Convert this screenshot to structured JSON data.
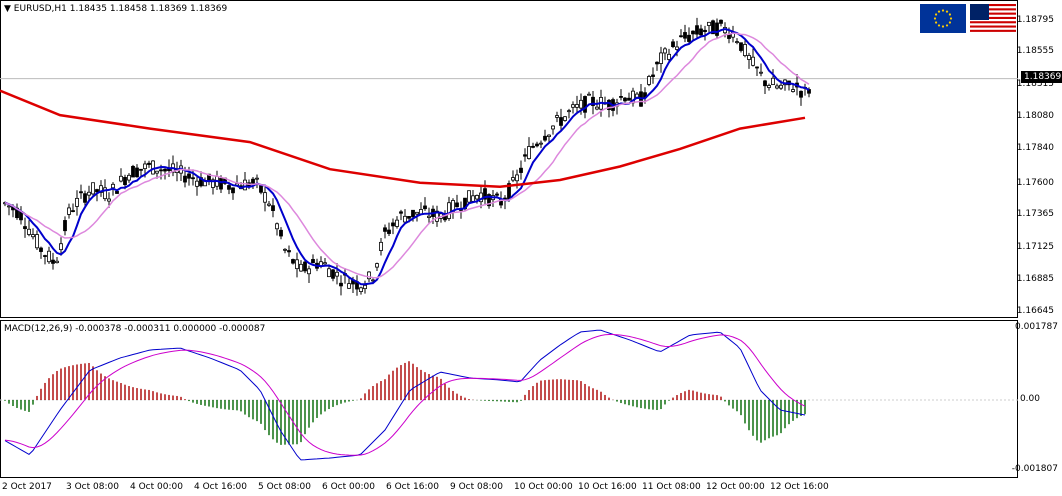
{
  "main": {
    "header": "EURUSD,H1  1.18435 1.18458 1.18369 1.18369",
    "price_axis": [
      "1.18795",
      "1.18555",
      "1.18315",
      "1.18080",
      "1.17840",
      "1.17600",
      "1.17365",
      "1.17125",
      "1.16885",
      "1.16645"
    ],
    "current_price": "1.18369",
    "flags": {
      "left": "eu-flag-icon",
      "right": "us-flag-icon"
    },
    "colors": {
      "fast_ma": "#0000cc",
      "mid_ma": "#dd88dd",
      "slow_ma": "#dd0000",
      "bull": "#000000"
    }
  },
  "macd": {
    "header": "MACD(12,26,9) -0.000378 -0.000311 0.000000 -0.000087",
    "axis": [
      "0.001787",
      "0.00",
      "-0.001807"
    ],
    "colors": {
      "pos": "#aa0000",
      "neg": "#006600",
      "macd": "#0000cc",
      "signal": "#cc00cc"
    }
  },
  "time_axis": [
    "2 Oct 2017",
    "3 Oct 08:00",
    "4 Oct 00:00",
    "4 Oct 16:00",
    "5 Oct 08:00",
    "6 Oct 00:00",
    "6 Oct 16:00",
    "9 Oct 08:00",
    "10 Oct 00:00",
    "10 Oct 16:00",
    "11 Oct 08:00",
    "12 Oct 00:00",
    "12 Oct 16:00"
  ]
}
